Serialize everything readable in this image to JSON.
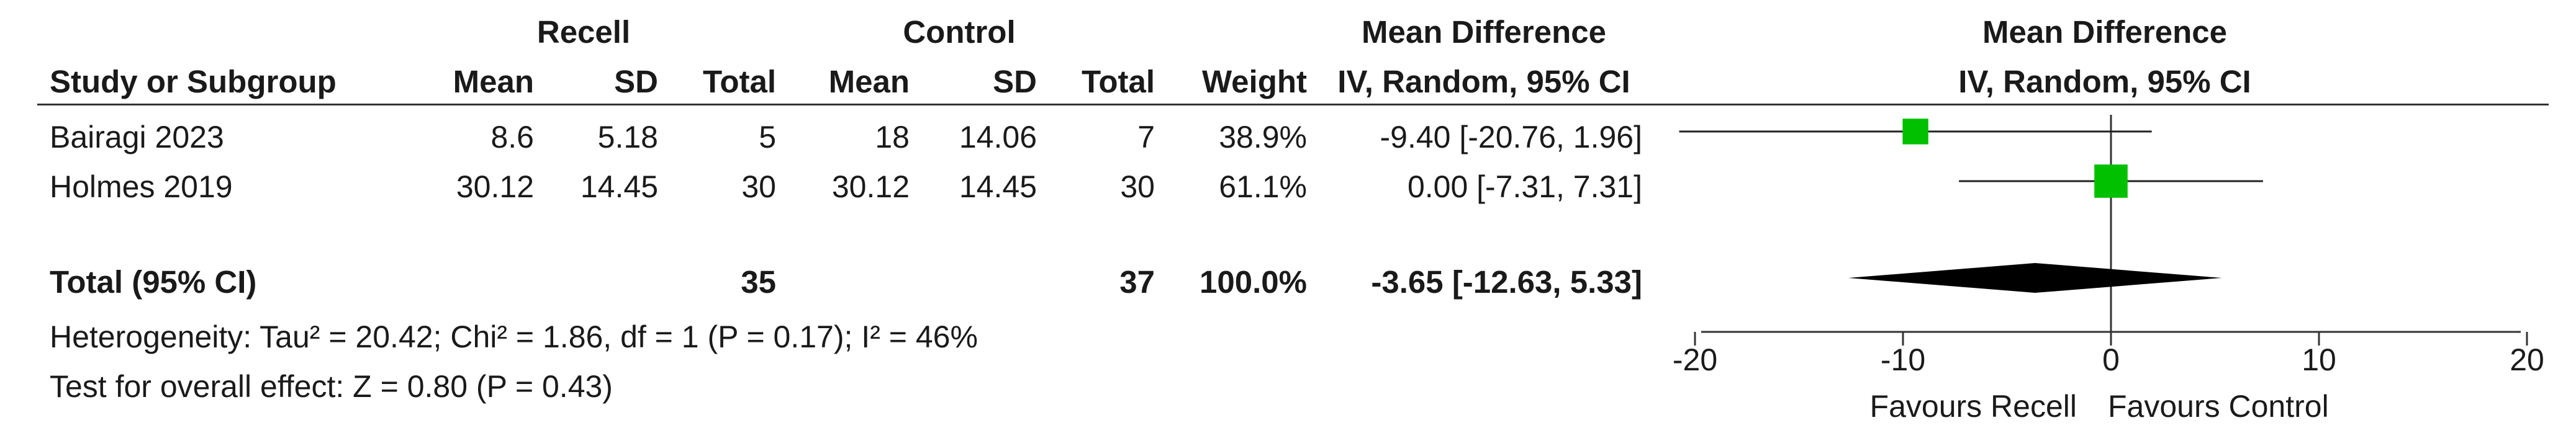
{
  "header": {
    "group_recell": "Recell",
    "group_control": "Control",
    "mean_difference": "Mean Difference",
    "study_col": "Study or Subgroup",
    "mean": "Mean",
    "sd": "SD",
    "total": "Total",
    "weight": "Weight",
    "method": "IV, Random, 95% CI",
    "plot_title": "Mean Difference",
    "plot_method": "IV, Random, 95% CI"
  },
  "studies": [
    {
      "name": "Bairagi 2023",
      "recell_mean": "8.6",
      "recell_sd": "5.18",
      "recell_total": "5",
      "control_mean": "18",
      "control_sd": "14.06",
      "control_total": "7",
      "weight": "38.9%",
      "ci_text": "-9.40 [-20.76, 1.96]"
    },
    {
      "name": "Holmes 2019",
      "recell_mean": "30.12",
      "recell_sd": "14.45",
      "recell_total": "30",
      "control_mean": "30.12",
      "control_sd": "14.45",
      "control_total": "30",
      "weight": "61.1%",
      "ci_text": "0.00 [-7.31, 7.31]"
    }
  ],
  "total_row": {
    "label": "Total (95% CI)",
    "recell_total": "35",
    "control_total": "37",
    "weight": "100.0%",
    "ci_text": "-3.65 [-12.63, 5.33]"
  },
  "footer": {
    "heterogeneity": "Heterogeneity: Tau² = 20.42; Chi² = 1.86, df = 1 (P = 0.17); I² = 46%",
    "overall": "Test for overall effect: Z = 0.80 (P = 0.43)"
  },
  "axis": {
    "ticks": [
      "-20",
      "-10",
      "0",
      "10",
      "20"
    ],
    "favours_left": "Favours Recell",
    "favours_right": "Favours Control"
  },
  "colors": {
    "study_marker": "#00c000",
    "summary_diamond": "#000000",
    "text": "#1a1a1a"
  },
  "chart_data": {
    "type": "forest",
    "x_axis_ticks": [
      -20,
      -10,
      0,
      10,
      20
    ],
    "study_estimates": [
      {
        "study": "Bairagi 2023",
        "mean_difference": -9.4,
        "ci_low": -20.76,
        "ci_high": 1.96,
        "weight": 38.9
      },
      {
        "study": "Holmes 2019",
        "mean_difference": 0.0,
        "ci_low": -7.31,
        "ci_high": 7.31,
        "weight": 61.1
      }
    ],
    "pooled": {
      "mean_difference": -3.65,
      "ci_low": -12.63,
      "ci_high": 5.33
    }
  }
}
